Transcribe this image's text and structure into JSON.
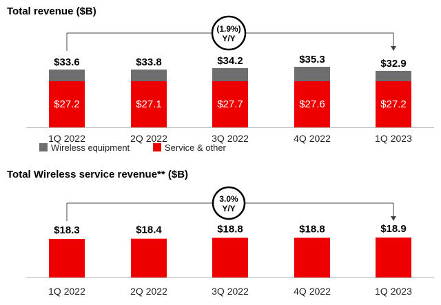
{
  "chart_data": [
    {
      "type": "bar",
      "stacked": true,
      "title": "Total revenue ($B)",
      "categories": [
        "1Q 2022",
        "2Q 2022",
        "3Q 2022",
        "4Q 2022",
        "1Q 2023"
      ],
      "series": [
        {
          "name": "Service & other",
          "values": [
            27.2,
            27.1,
            27.7,
            27.6,
            27.2
          ],
          "labels": [
            "$27.2",
            "$27.1",
            "$27.7",
            "$27.6",
            "$27.2"
          ],
          "color": "#ee0000"
        },
        {
          "name": "Wireless equipment",
          "values": [
            6.4,
            6.7,
            6.5,
            7.7,
            5.7
          ],
          "color": "#6e6e6e"
        }
      ],
      "totals": [
        33.6,
        33.8,
        34.2,
        35.3,
        32.9
      ],
      "total_labels": [
        "$33.6",
        "$33.8",
        "$34.2",
        "$35.3",
        "$32.9"
      ],
      "legend": [
        "Wireless equipment",
        "Service & other"
      ],
      "annotation": {
        "line1": "(1.9%)",
        "line2": "Y/Y",
        "from": "1Q 2022",
        "to": "1Q 2023"
      }
    },
    {
      "type": "bar",
      "title": "Total Wireless service revenue** ($B)",
      "categories": [
        "1Q 2022",
        "2Q 2022",
        "3Q 2022",
        "4Q 2022",
        "1Q 2023"
      ],
      "series": [
        {
          "name": "Wireless service revenue",
          "values": [
            18.3,
            18.4,
            18.8,
            18.8,
            18.9
          ],
          "color": "#ee0000"
        }
      ],
      "total_labels": [
        "$18.3",
        "$18.4",
        "$18.8",
        "$18.8",
        "$18.9"
      ],
      "annotation": {
        "line1": "3.0%",
        "line2": "Y/Y",
        "from": "1Q 2022",
        "to": "1Q 2023"
      }
    }
  ]
}
